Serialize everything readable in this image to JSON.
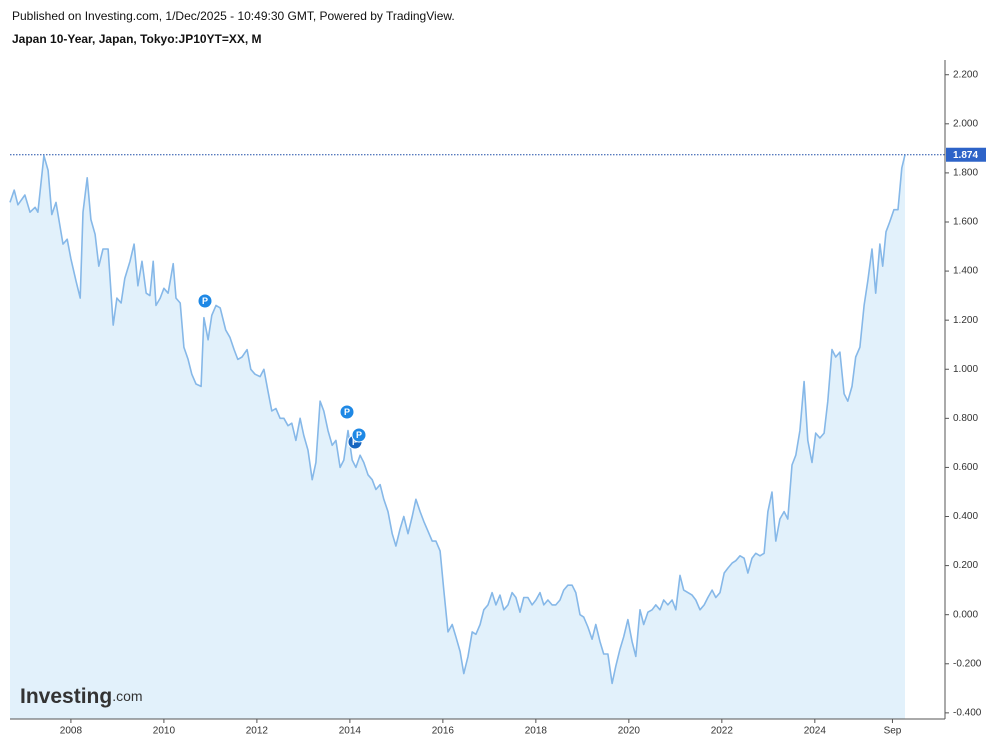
{
  "header": "Published on Investing.com, 1/Dec/2025 - 10:49:30 GMT, Powered by TradingView.",
  "chart_data": {
    "type": "area",
    "title": "Japan 10-Year, Japan, Tokyo:JP10YT=XX, M",
    "line_color": "#86b8e8",
    "fill_color": "#e2f1fb",
    "last_line_color": "#1f4ea8",
    "xlim": [
      2006.69,
      2026.8
    ],
    "xticks": [
      2008,
      2010,
      2012,
      2014,
      2016,
      2018,
      2020,
      2022,
      2024,
      {
        "value": 2025.67,
        "label": "Sep"
      }
    ],
    "ylim": [
      -0.425,
      2.26
    ],
    "yticks": [
      {
        "value": -0.4,
        "label": "-0.400"
      },
      {
        "value": -0.2,
        "label": "-0.200"
      },
      {
        "value": 0,
        "label": "0.000"
      },
      {
        "value": 0.2,
        "label": "0.200"
      },
      {
        "value": 0.4,
        "label": "0.400"
      },
      {
        "value": 0.6,
        "label": "0.600"
      },
      {
        "value": 0.8,
        "label": "0.800"
      },
      {
        "value": 1.0,
        "label": "1.000"
      },
      {
        "value": 1.2,
        "label": "1.200"
      },
      {
        "value": 1.4,
        "label": "1.400"
      },
      {
        "value": 1.6,
        "label": "1.600"
      },
      {
        "value": 1.8,
        "label": "1.800"
      },
      {
        "value": 2.0,
        "label": "2.000"
      },
      {
        "value": 2.2,
        "label": "2.200"
      }
    ],
    "grid": false,
    "x": [
      2006.69,
      2006.78,
      2006.86,
      2007.01,
      2007.12,
      2007.23,
      2007.29,
      2007.42,
      2007.51,
      2007.59,
      2007.68,
      2007.83,
      2007.92,
      2008.0,
      2008.11,
      2008.2,
      2008.26,
      2008.35,
      2008.43,
      2008.52,
      2008.6,
      2008.69,
      2008.8,
      2008.91,
      2008.99,
      2009.08,
      2009.16,
      2009.27,
      2009.36,
      2009.44,
      2009.53,
      2009.62,
      2009.7,
      2009.77,
      2009.83,
      2009.92,
      2010.0,
      2010.09,
      2010.2,
      2010.26,
      2010.35,
      2010.43,
      2010.52,
      2010.6,
      2010.69,
      2010.8,
      2010.86,
      2010.95,
      2011.03,
      2011.12,
      2011.21,
      2011.33,
      2011.42,
      2011.51,
      2011.59,
      2011.68,
      2011.79,
      2011.87,
      2011.96,
      2012.07,
      2012.15,
      2012.24,
      2012.32,
      2012.41,
      2012.5,
      2012.58,
      2012.67,
      2012.75,
      2012.84,
      2012.93,
      2013.01,
      2013.1,
      2013.19,
      2013.27,
      2013.36,
      2013.44,
      2013.53,
      2013.62,
      2013.7,
      2013.79,
      2013.87,
      2013.96,
      2014.05,
      2014.13,
      2014.22,
      2014.3,
      2014.39,
      2014.48,
      2014.56,
      2014.65,
      2014.73,
      2014.82,
      2014.91,
      2014.99,
      2015.08,
      2015.16,
      2015.25,
      2015.34,
      2015.42,
      2015.51,
      2015.59,
      2015.68,
      2015.77,
      2015.85,
      2015.94,
      2016.02,
      2016.11,
      2016.2,
      2016.28,
      2016.37,
      2016.45,
      2016.54,
      2016.63,
      2016.71,
      2016.8,
      2016.88,
      2016.97,
      2017.06,
      2017.14,
      2017.23,
      2017.31,
      2017.4,
      2017.49,
      2017.57,
      2017.66,
      2017.74,
      2017.83,
      2017.92,
      2018.0,
      2018.09,
      2018.17,
      2018.26,
      2018.35,
      2018.43,
      2018.52,
      2018.6,
      2018.69,
      2018.78,
      2018.86,
      2018.95,
      2019.03,
      2019.12,
      2019.21,
      2019.29,
      2019.38,
      2019.46,
      2019.55,
      2019.64,
      2019.72,
      2019.81,
      2019.89,
      2019.98,
      2020.07,
      2020.15,
      2020.24,
      2020.32,
      2020.41,
      2020.5,
      2020.58,
      2020.67,
      2020.75,
      2020.84,
      2020.93,
      2021.01,
      2021.1,
      2021.18,
      2021.27,
      2021.36,
      2021.44,
      2021.53,
      2021.62,
      2021.7,
      2021.79,
      2021.87,
      2021.96,
      2022.05,
      2022.13,
      2022.22,
      2022.3,
      2022.39,
      2022.48,
      2022.56,
      2022.65,
      2022.73,
      2022.82,
      2022.91,
      2022.99,
      2023.08,
      2023.16,
      2023.25,
      2023.34,
      2023.42,
      2023.51,
      2023.59,
      2023.68,
      2023.77,
      2023.85,
      2023.94,
      2024.02,
      2024.11,
      2024.2,
      2024.28,
      2024.37,
      2024.45,
      2024.54,
      2024.63,
      2024.71,
      2024.8,
      2024.88,
      2024.97,
      2025.06,
      2025.14,
      2025.23,
      2025.31,
      2025.4,
      2025.46,
      2025.53,
      2025.61,
      2025.7,
      2025.79,
      2025.87,
      2025.94
    ],
    "values": [
      1.68,
      1.73,
      1.67,
      1.71,
      1.64,
      1.66,
      1.64,
      1.87,
      1.81,
      1.63,
      1.68,
      1.51,
      1.53,
      1.45,
      1.36,
      1.29,
      1.64,
      1.78,
      1.61,
      1.55,
      1.42,
      1.49,
      1.49,
      1.18,
      1.29,
      1.27,
      1.37,
      1.44,
      1.51,
      1.34,
      1.44,
      1.31,
      1.3,
      1.44,
      1.26,
      1.29,
      1.33,
      1.31,
      1.43,
      1.29,
      1.27,
      1.09,
      1.04,
      0.98,
      0.94,
      0.93,
      1.21,
      1.12,
      1.22,
      1.26,
      1.25,
      1.16,
      1.13,
      1.08,
      1.04,
      1.05,
      1.08,
      1.0,
      0.98,
      0.97,
      1.0,
      0.91,
      0.83,
      0.84,
      0.8,
      0.8,
      0.77,
      0.78,
      0.71,
      0.8,
      0.73,
      0.67,
      0.55,
      0.62,
      0.87,
      0.83,
      0.75,
      0.69,
      0.71,
      0.6,
      0.63,
      0.75,
      0.63,
      0.6,
      0.65,
      0.62,
      0.57,
      0.55,
      0.51,
      0.53,
      0.47,
      0.42,
      0.33,
      0.28,
      0.35,
      0.4,
      0.33,
      0.4,
      0.47,
      0.42,
      0.38,
      0.34,
      0.3,
      0.3,
      0.26,
      0.1,
      -0.07,
      -0.04,
      -0.09,
      -0.15,
      -0.24,
      -0.17,
      -0.07,
      -0.08,
      -0.04,
      0.02,
      0.04,
      0.09,
      0.04,
      0.08,
      0.02,
      0.04,
      0.09,
      0.07,
      0.01,
      0.07,
      0.07,
      0.04,
      0.06,
      0.09,
      0.04,
      0.06,
      0.04,
      0.04,
      0.06,
      0.1,
      0.12,
      0.12,
      0.09,
      0.0,
      -0.01,
      -0.05,
      -0.1,
      -0.04,
      -0.11,
      -0.16,
      -0.16,
      -0.28,
      -0.21,
      -0.14,
      -0.09,
      -0.02,
      -0.11,
      -0.17,
      0.02,
      -0.04,
      0.01,
      0.02,
      0.04,
      0.02,
      0.06,
      0.04,
      0.06,
      0.02,
      0.16,
      0.1,
      0.09,
      0.08,
      0.06,
      0.02,
      0.04,
      0.07,
      0.1,
      0.07,
      0.09,
      0.17,
      0.19,
      0.21,
      0.22,
      0.24,
      0.23,
      0.17,
      0.23,
      0.25,
      0.24,
      0.25,
      0.42,
      0.5,
      0.3,
      0.39,
      0.42,
      0.39,
      0.61,
      0.65,
      0.75,
      0.95,
      0.71,
      0.62,
      0.74,
      0.72,
      0.74,
      0.87,
      1.08,
      1.05,
      1.07,
      0.9,
      0.87,
      0.93,
      1.05,
      1.09,
      1.26,
      1.36,
      1.49,
      1.31,
      1.51,
      1.42,
      1.56,
      1.6,
      1.65,
      1.65,
      1.82,
      1.874
    ],
    "markers": [
      "P",
      "P",
      "P",
      "P"
    ]
  },
  "logo": {
    "name": "Investing",
    "suffix": ".com"
  }
}
